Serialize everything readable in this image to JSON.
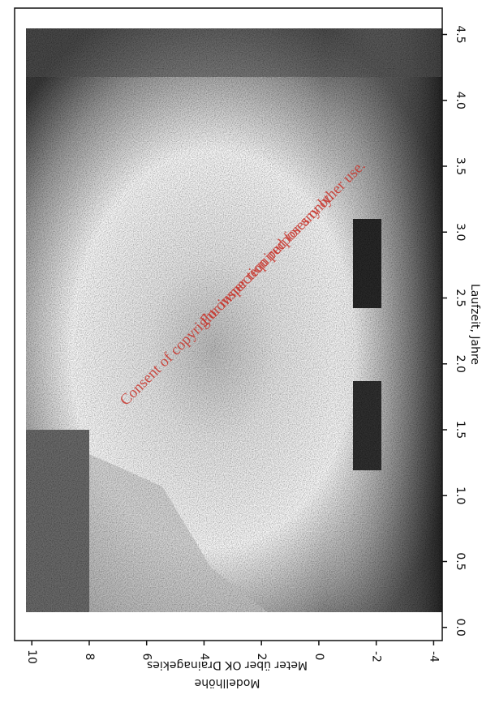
{
  "chart_data": {
    "type": "heatmap",
    "x_label": "Laufzeit, Jahre",
    "y_label": "Meter über OK Drainagekies",
    "y_label_2": "Modellhöhe",
    "xlim": [
      -0.1,
      4.7
    ],
    "xticks": [
      {
        "value": 0,
        "label": "0.0"
      },
      0.5,
      {
        "value": 1,
        "label": "1.0"
      },
      1.5,
      {
        "value": 2,
        "label": "2.0"
      },
      2.5,
      {
        "value": 3,
        "label": "3.0"
      },
      3.5,
      {
        "value": 4,
        "label": "4.0"
      },
      4.5
    ],
    "ylim": [
      10.6,
      -4.3
    ],
    "yticks": [
      10,
      8,
      6,
      4,
      2,
      0,
      -2,
      -4
    ],
    "annotations": [
      "For inspection purposes only.",
      "Consent of copyright owner required for any other use."
    ]
  }
}
